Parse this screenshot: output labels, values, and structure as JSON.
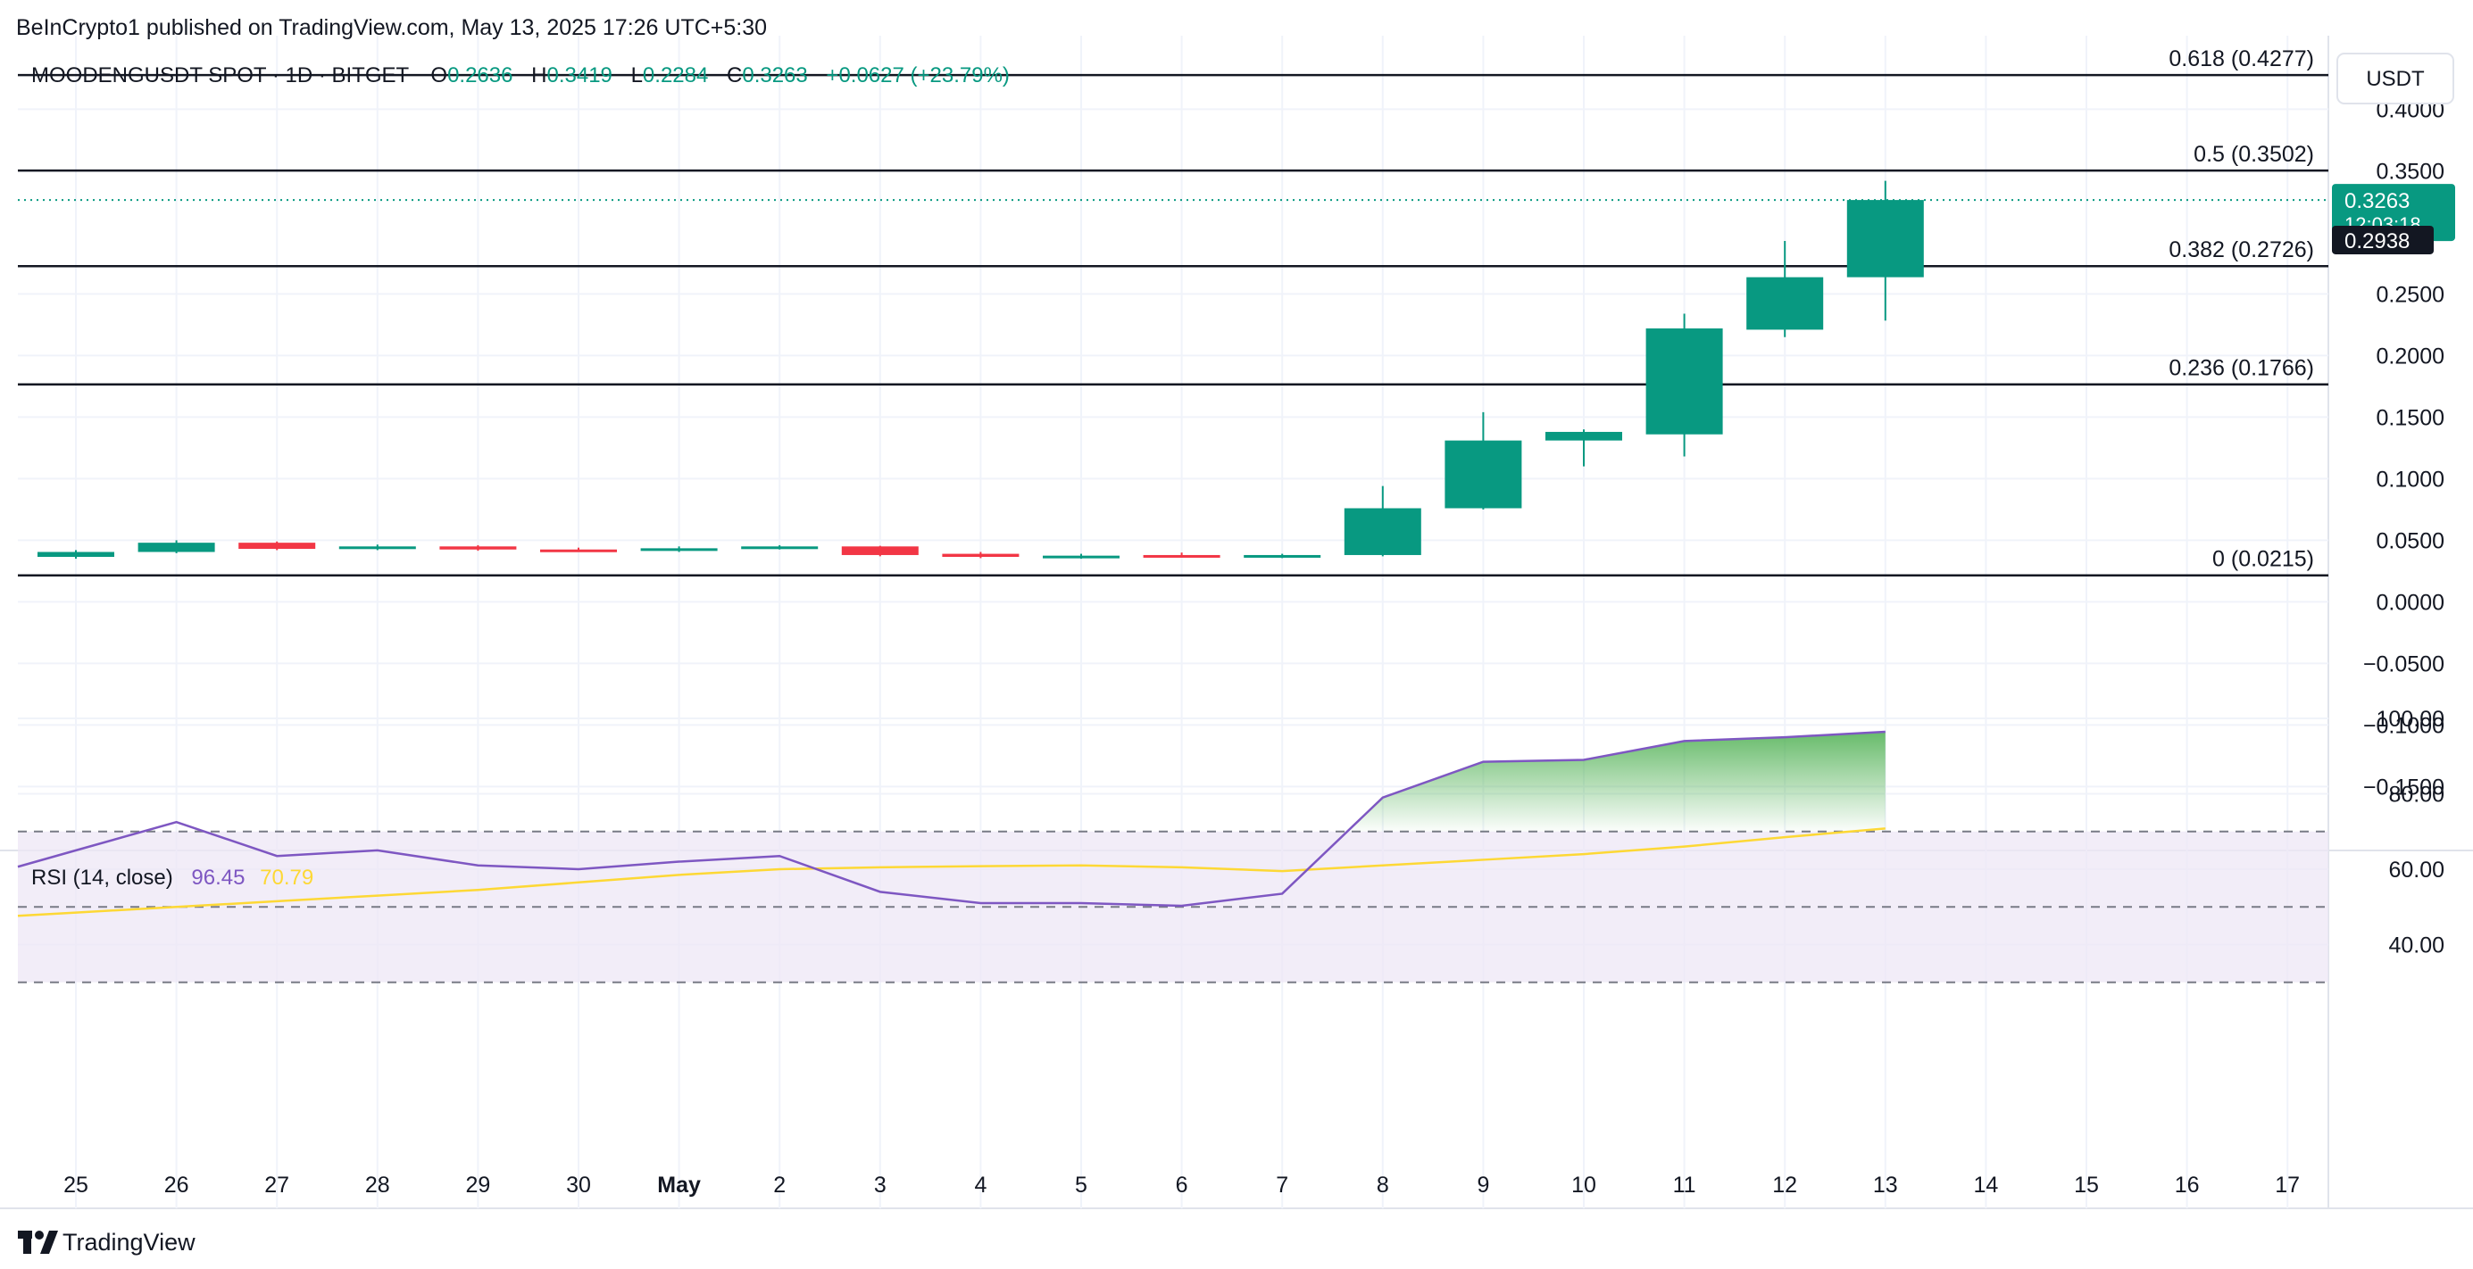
{
  "header": {
    "published_by": "BeInCrypto1 published on TradingView.com, May 13, 2025 17:26 UTC+5:30",
    "symbol": "MOODENGUSDT SPOT · 1D · BITGET",
    "o_label": "O",
    "o_value": "0.2636",
    "h_label": "H",
    "h_value": "0.3419",
    "l_label": "L",
    "l_value": "0.2284",
    "c_label": "C",
    "c_value": "0.3263",
    "change": "+0.0627 (+23.79%)"
  },
  "currency_button": "USDT",
  "price_tag": {
    "price": "0.3263",
    "countdown": "12:03:18"
  },
  "crosshair_tag": "0.2938",
  "footer_logo": "TradingView",
  "rsi_legend": {
    "label": "RSI (14, close)",
    "rsi_value": "96.45",
    "ma_value": "70.79"
  },
  "colors": {
    "up": "#089981",
    "down": "#f23645",
    "rsi": "#7e57c2",
    "rsi_ma": "#fdd835",
    "fib": "#131722",
    "grid": "#f0f3fa",
    "rsi_band": "#ede7f6",
    "fill_top": "#4caf50"
  },
  "chart_data": [
    {
      "type": "candlestick",
      "title": "MOODENGUSDT SPOT · 1D · BITGET",
      "x": [
        "25",
        "26",
        "27",
        "28",
        "29",
        "30",
        "May",
        "2",
        "3",
        "4",
        "5",
        "6",
        "7",
        "8",
        "9",
        "10",
        "11",
        "12",
        "13",
        "14",
        "15",
        "16",
        "17"
      ],
      "ohlc": [
        {
          "x": "25",
          "o": 0.0365,
          "h": 0.042,
          "l": 0.035,
          "c": 0.0405
        },
        {
          "x": "26",
          "o": 0.0405,
          "h": 0.05,
          "l": 0.0395,
          "c": 0.048
        },
        {
          "x": "27",
          "o": 0.048,
          "h": 0.049,
          "l": 0.042,
          "c": 0.043
        },
        {
          "x": "28",
          "o": 0.043,
          "h": 0.0465,
          "l": 0.042,
          "c": 0.045
        },
        {
          "x": "29",
          "o": 0.045,
          "h": 0.046,
          "l": 0.0415,
          "c": 0.0425
        },
        {
          "x": "30",
          "o": 0.0425,
          "h": 0.044,
          "l": 0.0405,
          "c": 0.042
        },
        {
          "x": "May",
          "o": 0.042,
          "h": 0.045,
          "l": 0.0405,
          "c": 0.0435
        },
        {
          "x": "2",
          "o": 0.0435,
          "h": 0.046,
          "l": 0.0425,
          "c": 0.045
        },
        {
          "x": "3",
          "o": 0.045,
          "h": 0.0455,
          "l": 0.037,
          "c": 0.038
        },
        {
          "x": "4",
          "o": 0.039,
          "h": 0.0405,
          "l": 0.0355,
          "c": 0.0365
        },
        {
          "x": "5",
          "o": 0.037,
          "h": 0.039,
          "l": 0.035,
          "c": 0.0375
        },
        {
          "x": "6",
          "o": 0.038,
          "h": 0.04,
          "l": 0.036,
          "c": 0.037
        },
        {
          "x": "7",
          "o": 0.037,
          "h": 0.039,
          "l": 0.0355,
          "c": 0.038
        },
        {
          "x": "8",
          "o": 0.038,
          "h": 0.094,
          "l": 0.037,
          "c": 0.076
        },
        {
          "x": "9",
          "o": 0.076,
          "h": 0.154,
          "l": 0.075,
          "c": 0.131
        },
        {
          "x": "10",
          "o": 0.131,
          "h": 0.14,
          "l": 0.11,
          "c": 0.138
        },
        {
          "x": "11",
          "o": 0.136,
          "h": 0.234,
          "l": 0.118,
          "c": 0.222
        },
        {
          "x": "12",
          "o": 0.221,
          "h": 0.293,
          "l": 0.215,
          "c": 0.2636
        },
        {
          "x": "13",
          "o": 0.2636,
          "h": 0.3419,
          "l": 0.2284,
          "c": 0.3263
        }
      ],
      "ylim": [
        -0.19,
        0.43
      ],
      "y_ticks": [
        "0.4000",
        "0.3500",
        "0.2500",
        "0.2000",
        "0.1500",
        "0.1000",
        "0.0500",
        "0.0000",
        "−0.0500",
        "−0.1000",
        "−0.1500"
      ],
      "y_tick_values": [
        0.4,
        0.35,
        0.25,
        0.2,
        0.15,
        0.1,
        0.05,
        0.0,
        -0.05,
        -0.1,
        -0.15
      ],
      "last_price": 0.3263,
      "crosshair_price": 0.2938,
      "fib_levels": [
        {
          "label": "0.618 (0.4277)",
          "value": 0.4277
        },
        {
          "label": "0.5 (0.3502)",
          "value": 0.3502
        },
        {
          "label": "0.382 (0.2726)",
          "value": 0.2726
        },
        {
          "label": "0.236 (0.1766)",
          "value": 0.1766
        },
        {
          "label": "0 (0.0215)",
          "value": 0.0215
        }
      ]
    },
    {
      "type": "line",
      "title": "RSI (14, close)",
      "x": [
        "25",
        "26",
        "27",
        "28",
        "29",
        "30",
        "May",
        "2",
        "3",
        "4",
        "5",
        "6",
        "7",
        "8",
        "9",
        "10",
        "11",
        "12",
        "13"
      ],
      "series": [
        {
          "name": "RSI",
          "values": [
            65.0,
            72.5,
            63.5,
            65.0,
            61.0,
            60.0,
            62.0,
            63.5,
            54.0,
            51.0,
            51.0,
            50.3,
            53.5,
            79.0,
            88.5,
            89.0,
            94.0,
            95.0,
            96.45
          ]
        },
        {
          "name": "RSI-based MA",
          "values": [
            48.5,
            50.0,
            51.5,
            53.0,
            54.5,
            56.5,
            58.5,
            60.0,
            60.5,
            60.8,
            61.0,
            60.5,
            59.5,
            61.0,
            62.5,
            64.0,
            66.0,
            68.5,
            70.79
          ]
        }
      ],
      "ylim": [
        28,
        102
      ],
      "y_ticks": [
        "100.00",
        "80.00",
        "60.00",
        "40.00"
      ],
      "y_tick_values": [
        100,
        80,
        60,
        40
      ],
      "bands": {
        "upper": 70,
        "middle": 50,
        "lower": 30
      }
    }
  ]
}
